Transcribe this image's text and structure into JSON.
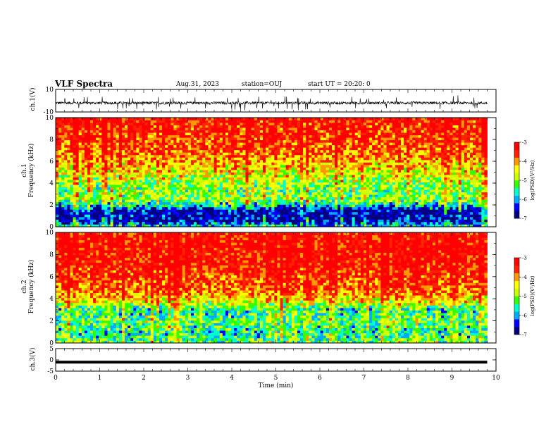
{
  "header": {
    "title": "VLF Spectra",
    "date": "Aug.31, 2023",
    "station": "station=OUJ",
    "start": "start UT = 20:20: 0"
  },
  "chart_data": [
    {
      "type": "line",
      "panel": "ch1-waveform",
      "ylabel": "ch.1(V)",
      "ylim": [
        -10,
        10
      ],
      "yticks": [
        "10",
        "-10"
      ],
      "xlim": [
        0,
        10
      ],
      "x_extent_min": 9.8,
      "baseline_v": -2,
      "amplitude_v": 2.5,
      "spike_v": 6
    },
    {
      "type": "heatmap",
      "panel": "ch1-spectrogram",
      "ylabel": "ch.1\nFrequency (kHz)",
      "ylim": [
        0,
        10
      ],
      "yticks": [
        "0",
        "2",
        "4",
        "6",
        "8",
        "10"
      ],
      "xlim": [
        0,
        10
      ],
      "x_extent_min": 9.8,
      "colorbar": {
        "label": "log(PSD)(V²/Hz)",
        "range": [
          -7,
          -3
        ],
        "ticks": [
          "-3",
          "-4",
          "-5",
          "-6",
          "-7"
        ]
      },
      "profile_by_kHz": [
        {
          "f": 0.0,
          "level": -5.5
        },
        {
          "f": 0.5,
          "level": -6.8
        },
        {
          "f": 1.5,
          "level": -6.8
        },
        {
          "f": 2.0,
          "level": -5.8
        },
        {
          "f": 2.5,
          "level": -5.0
        },
        {
          "f": 3.5,
          "level": -5.2
        },
        {
          "f": 5.0,
          "level": -4.6
        },
        {
          "f": 6.5,
          "level": -4.0
        },
        {
          "f": 8.0,
          "level": -3.6
        },
        {
          "f": 10.0,
          "level": -3.4
        }
      ]
    },
    {
      "type": "heatmap",
      "panel": "ch2-spectrogram",
      "ylabel": "ch.2\nFrequency (kHz)",
      "ylim": [
        0,
        10
      ],
      "yticks": [
        "0",
        "2",
        "4",
        "6",
        "8",
        "10"
      ],
      "xlim": [
        0,
        10
      ],
      "x_extent_min": 9.8,
      "colorbar": {
        "label": "log(PSD)(V²/Hz)",
        "range": [
          -7,
          -3
        ],
        "ticks": [
          "-3",
          "-4",
          "-5",
          "-6",
          "-7"
        ]
      },
      "profile_by_kHz": [
        {
          "f": 0.0,
          "level": -5.3
        },
        {
          "f": 1.0,
          "level": -5.6
        },
        {
          "f": 2.0,
          "level": -5.3
        },
        {
          "f": 3.0,
          "level": -5.6
        },
        {
          "f": 3.8,
          "level": -4.6
        },
        {
          "f": 5.0,
          "level": -3.8
        },
        {
          "f": 7.0,
          "level": -3.4
        },
        {
          "f": 10.0,
          "level": -3.3
        }
      ]
    },
    {
      "type": "line",
      "panel": "ch3-waveform",
      "ylabel": "ch.3(V)",
      "ylim": [
        -5,
        5
      ],
      "yticks": [
        "5",
        "0",
        "-5"
      ],
      "xlim": [
        0,
        10
      ],
      "x_extent_min": 9.8,
      "baseline_v": -1
    }
  ],
  "xaxis": {
    "label": "Time (min)",
    "ticks": [
      "0",
      "1",
      "2",
      "3",
      "4",
      "5",
      "6",
      "7",
      "8",
      "9",
      "10"
    ]
  },
  "colors": {
    "scale": [
      "#000080",
      "#0000ff",
      "#00aaff",
      "#00ffcc",
      "#33ff00",
      "#ccff00",
      "#ffff00",
      "#ff9900",
      "#ff2200",
      "#ff0000"
    ],
    "axis": "#000000"
  }
}
